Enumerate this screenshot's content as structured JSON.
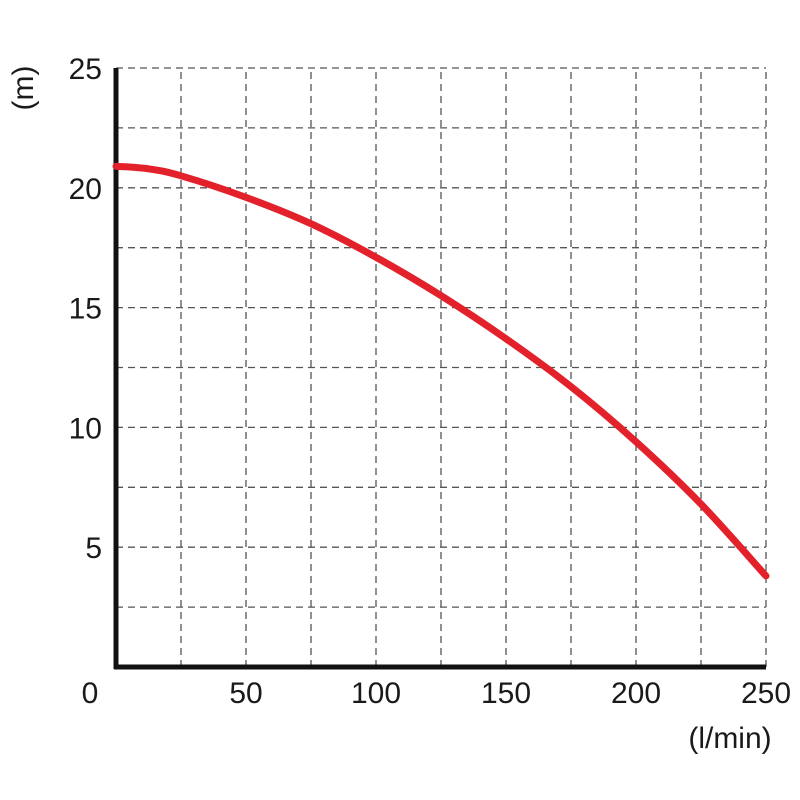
{
  "chart_data": {
    "type": "line",
    "title": "",
    "xlabel": "(l/min)",
    "ylabel": "(m)",
    "xlim": [
      0,
      250
    ],
    "ylim": [
      0,
      25
    ],
    "x_ticks": [
      0,
      50,
      100,
      150,
      200,
      250
    ],
    "x_tick_labels": [
      "0",
      "50",
      "100",
      "150",
      "200",
      "250"
    ],
    "y_ticks": [
      5,
      10,
      15,
      20,
      25
    ],
    "y_tick_labels": [
      "5",
      "10",
      "15",
      "20",
      "25"
    ],
    "grid": true,
    "x_grid_step": 25,
    "y_grid_step": 2.5,
    "series": [
      {
        "color": "#e3212b",
        "x": [
          0,
          12,
          25,
          50,
          75,
          100,
          125,
          150,
          175,
          200,
          225,
          250
        ],
        "y": [
          20.9,
          20.8,
          20.5,
          19.6,
          18.5,
          17.1,
          15.5,
          13.7,
          11.7,
          9.4,
          6.8,
          3.8
        ]
      }
    ]
  }
}
